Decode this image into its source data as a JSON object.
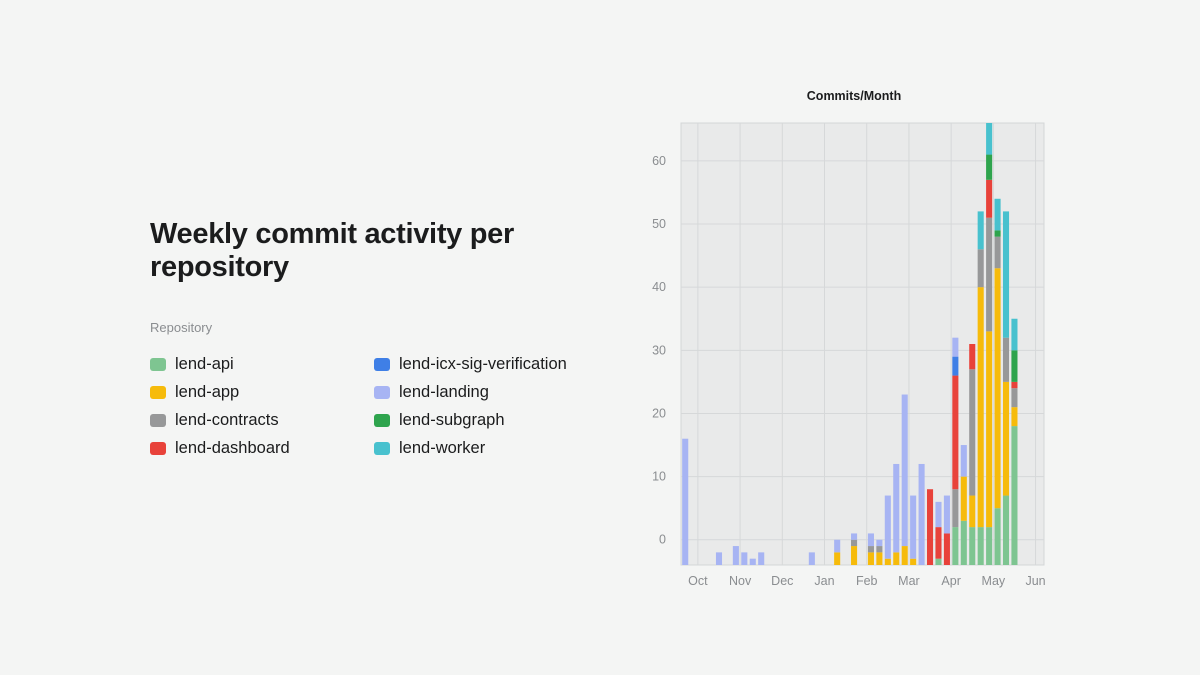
{
  "page": {
    "title": "Weekly commit activity per repository",
    "legend_heading": "Repository"
  },
  "legend": [
    {
      "label": "lend-api",
      "color": "#7ec591"
    },
    {
      "label": "lend-app",
      "color": "#f6bb0b"
    },
    {
      "label": "lend-contracts",
      "color": "#979899"
    },
    {
      "label": "lend-dashboard",
      "color": "#e8423a"
    },
    {
      "label": "lend-icx-sig-verification",
      "color": "#3f7fe6"
    },
    {
      "label": "lend-landing",
      "color": "#a7b4f3"
    },
    {
      "label": "lend-subgraph",
      "color": "#2ea44d"
    },
    {
      "label": "lend-worker",
      "color": "#48c1ce"
    }
  ],
  "chart_data": {
    "type": "bar",
    "stacked": true,
    "title": "Commits/Month",
    "xlabel": "",
    "ylabel": "",
    "ylim": [
      -4,
      66
    ],
    "yticks": [
      0,
      10,
      20,
      30,
      40,
      50,
      60
    ],
    "xlim": [
      0,
      43
    ],
    "xticks": [
      {
        "label": "Oct",
        "pos": 2
      },
      {
        "label": "Nov",
        "pos": 7
      },
      {
        "label": "Dec",
        "pos": 12
      },
      {
        "label": "Jan",
        "pos": 17
      },
      {
        "label": "Feb",
        "pos": 22
      },
      {
        "label": "Mar",
        "pos": 27
      },
      {
        "label": "Apr",
        "pos": 32
      },
      {
        "label": "May",
        "pos": 37
      },
      {
        "label": "Jun",
        "pos": 42
      }
    ],
    "grid": true,
    "legend_position": "left",
    "series": [
      {
        "name": "lend-api",
        "color": "#7ec591",
        "values": [
          0,
          0,
          0,
          0,
          0,
          0,
          0,
          0,
          0,
          0,
          0,
          0,
          0,
          0,
          0,
          0,
          0,
          0,
          0,
          0,
          0,
          0,
          0,
          0,
          0,
          0,
          0,
          0,
          0,
          0,
          1,
          0,
          6,
          7,
          6,
          6,
          6,
          9,
          11,
          22
        ]
      },
      {
        "name": "lend-app",
        "color": "#f6bb0b",
        "values": [
          0,
          0,
          0,
          0,
          0,
          0,
          0,
          0,
          0,
          0,
          0,
          0,
          0,
          0,
          0,
          0,
          0,
          0,
          2,
          0,
          3,
          0,
          2,
          2,
          1,
          2,
          3,
          1,
          0,
          0,
          0,
          0,
          0,
          7,
          5,
          38,
          31,
          38,
          18,
          3
        ]
      },
      {
        "name": "lend-contracts",
        "color": "#979899",
        "values": [
          0,
          0,
          0,
          0,
          0,
          0,
          0,
          0,
          0,
          0,
          0,
          0,
          0,
          0,
          0,
          0,
          0,
          0,
          0,
          0,
          1,
          0,
          1,
          1,
          0,
          0,
          0,
          0,
          0,
          0,
          0,
          0,
          6,
          0,
          20,
          6,
          18,
          5,
          7,
          3
        ]
      },
      {
        "name": "lend-dashboard",
        "color": "#e8423a",
        "values": [
          0,
          0,
          0,
          0,
          0,
          0,
          0,
          0,
          0,
          0,
          0,
          0,
          0,
          0,
          0,
          0,
          0,
          0,
          0,
          0,
          0,
          0,
          0,
          0,
          0,
          0,
          0,
          0,
          0,
          12,
          5,
          5,
          18,
          0,
          4,
          0,
          6,
          0,
          0,
          1
        ]
      },
      {
        "name": "lend-icx-sig-verification",
        "color": "#3f7fe6",
        "values": [
          0,
          0,
          0,
          0,
          0,
          0,
          0,
          0,
          0,
          0,
          0,
          0,
          0,
          0,
          0,
          0,
          0,
          0,
          0,
          0,
          0,
          0,
          0,
          0,
          0,
          0,
          0,
          0,
          0,
          0,
          0,
          0,
          3,
          0,
          0,
          0,
          0,
          0,
          0,
          0
        ]
      },
      {
        "name": "lend-landing",
        "color": "#a7b4f3",
        "values": [
          20,
          0,
          0,
          0,
          2,
          0,
          3,
          2,
          1,
          2,
          0,
          0,
          0,
          0,
          0,
          2,
          0,
          0,
          2,
          0,
          1,
          0,
          2,
          1,
          10,
          14,
          24,
          10,
          16,
          0,
          4,
          6,
          3,
          5,
          0,
          0,
          0,
          0,
          0,
          0
        ]
      },
      {
        "name": "lend-subgraph",
        "color": "#2ea44d",
        "values": [
          0,
          0,
          0,
          0,
          0,
          0,
          0,
          0,
          0,
          0,
          0,
          0,
          0,
          0,
          0,
          0,
          0,
          0,
          0,
          0,
          0,
          0,
          0,
          0,
          0,
          0,
          0,
          0,
          0,
          0,
          0,
          0,
          0,
          0,
          0,
          0,
          4,
          1,
          0,
          5
        ]
      },
      {
        "name": "lend-worker",
        "color": "#48c1ce",
        "values": [
          0,
          0,
          0,
          0,
          0,
          0,
          0,
          0,
          0,
          0,
          0,
          0,
          0,
          0,
          0,
          0,
          0,
          0,
          0,
          0,
          0,
          0,
          0,
          0,
          0,
          0,
          0,
          0,
          0,
          0,
          0,
          0,
          0,
          0,
          0,
          6,
          5,
          5,
          20,
          5
        ]
      }
    ]
  }
}
